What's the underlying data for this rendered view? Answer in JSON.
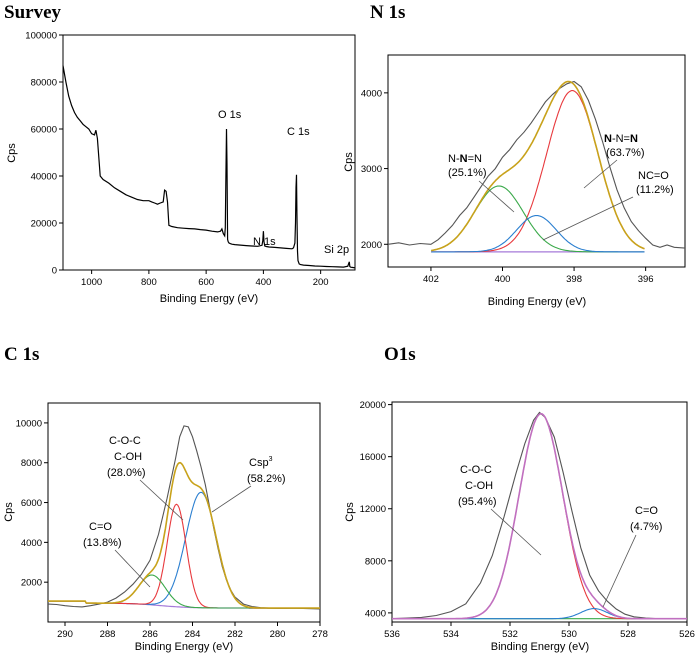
{
  "figure": {
    "description_label": "XPS spectra"
  },
  "chart_data": [
    {
      "id": "survey",
      "type": "line",
      "title": "Survey",
      "xlabel": "Binding Energy (eV)",
      "ylabel": "Cps",
      "xlim": [
        1100,
        80
      ],
      "ylim": [
        0,
        100000
      ],
      "xticks": [
        1000,
        800,
        600,
        400,
        200
      ],
      "xtick_labels": [
        "1000",
        "800",
        "600",
        "400",
        "200"
      ],
      "yticks": [
        0,
        20000,
        40000,
        60000,
        80000,
        100000
      ],
      "ytick_labels": [
        "0",
        "20000",
        "40000",
        "60000",
        "80000",
        "100000"
      ],
      "series": [
        {
          "name": "survey",
          "color": "#000000",
          "x": [
            1100,
            1090,
            1080,
            1070,
            1060,
            1050,
            1040,
            1030,
            1020,
            1010,
            1000,
            990,
            985,
            980,
            975,
            970,
            960,
            940,
            920,
            900,
            880,
            860,
            840,
            820,
            800,
            790,
            780,
            770,
            760,
            750,
            745,
            740,
            735,
            730,
            720,
            700,
            680,
            660,
            640,
            620,
            600,
            580,
            560,
            550,
            545,
            540,
            535,
            533,
            531,
            529,
            527,
            525,
            523,
            520,
            515,
            510,
            500,
            480,
            460,
            440,
            420,
            405,
            402,
            400,
            398,
            395,
            390,
            380,
            360,
            340,
            320,
            300,
            295,
            290,
            288,
            286,
            284.5,
            283,
            281,
            279,
            275,
            270,
            260,
            240,
            220,
            200,
            180,
            160,
            140,
            120,
            105,
            102,
            100,
            98,
            95,
            90,
            85,
            80
          ],
          "y": [
            87000,
            80000,
            74000,
            70000,
            67000,
            65000,
            63500,
            62000,
            61000,
            60000,
            58000,
            57500,
            59500,
            56000,
            48000,
            40000,
            38500,
            37000,
            35000,
            33500,
            32000,
            31000,
            30000,
            29500,
            29500,
            29000,
            28500,
            28000,
            28500,
            29000,
            34000,
            33500,
            29000,
            19000,
            18500,
            18000,
            17800,
            17600,
            17500,
            17200,
            17000,
            16500,
            16200,
            16500,
            17500,
            15500,
            14500,
            18000,
            40000,
            60000,
            45000,
            13000,
            12000,
            11500,
            11200,
            11000,
            10800,
            10600,
            10400,
            10200,
            10100,
            10500,
            12500,
            16500,
            12000,
            10200,
            10000,
            9800,
            9600,
            9400,
            9200,
            9000,
            9400,
            11500,
            20000,
            35000,
            40500,
            25000,
            8000,
            4000,
            2600,
            2300,
            2100,
            1900,
            1700,
            1600,
            1500,
            1400,
            1300,
            1250,
            1600,
            2800,
            3500,
            1500,
            1200,
            1100,
            1000,
            950
          ]
        }
      ],
      "annotations": [
        {
          "text": "O 1s",
          "x": 570,
          "y": 63000
        },
        {
          "text": "N 1s",
          "x": 448,
          "y": 32000
        },
        {
          "text": "C 1s",
          "x": 310,
          "y": 53000
        },
        {
          "text": "Si 2p",
          "x": 135,
          "y": 5500
        }
      ]
    },
    {
      "id": "n1s",
      "type": "line",
      "title": "N 1s",
      "xlabel": "Binding Energy (eV)",
      "ylabel": "Cps",
      "xlim": [
        403.2,
        394.9
      ],
      "ylim": [
        1700,
        4500
      ],
      "xticks": [
        402,
        400,
        398,
        396
      ],
      "xtick_labels": [
        "402",
        "400",
        "398",
        "396"
      ],
      "yticks": [
        2000,
        3000,
        4000
      ],
      "ytick_labels": [
        "2000",
        "3000",
        "4000"
      ],
      "background": 1900,
      "raw": {
        "name": "raw",
        "color": "#555555",
        "x": [
          403.2,
          402.9,
          402.6,
          402.3,
          402.0,
          401.8,
          401.6,
          401.4,
          401.2,
          401.0,
          400.8,
          400.6,
          400.4,
          400.2,
          400.0,
          399.8,
          399.6,
          399.4,
          399.2,
          399.0,
          398.8,
          398.6,
          398.4,
          398.2,
          398.0,
          397.8,
          397.6,
          397.4,
          397.2,
          397.0,
          396.8,
          396.6,
          396.4,
          396.2,
          396.0,
          395.8,
          395.6,
          395.4,
          395.2,
          394.9
        ],
        "y": [
          2000,
          2020,
          1990,
          2010,
          2000,
          2060,
          2150,
          2250,
          2380,
          2480,
          2620,
          2760,
          2900,
          3000,
          3150,
          3250,
          3380,
          3480,
          3600,
          3740,
          3880,
          3980,
          4060,
          4120,
          4150,
          4080,
          3900,
          3650,
          3350,
          3020,
          2720,
          2480,
          2300,
          2180,
          2080,
          1990,
          1960,
          1990,
          1960,
          1950
        ]
      },
      "peaks": [
        {
          "name": "N-N=N (63.7%)",
          "center": 398.05,
          "height": 2130,
          "sigma": 0.72,
          "color": "#e8393d"
        },
        {
          "name": "N-N=N (25.1%)",
          "center": 400.1,
          "height": 870,
          "sigma": 0.68,
          "color": "#3aa94a"
        },
        {
          "name": "NC=O (11.2%)",
          "center": 399.05,
          "height": 480,
          "sigma": 0.55,
          "color": "#2b7fd0"
        }
      ],
      "envelope_color": "#c8a21b",
      "envelope_range": [
        402,
        396
      ],
      "background_color": "#a57ad9",
      "annotations": [
        {
          "line1": "N-N=N",
          "line1_bold_parts": [
            "N",
            "",
            "N"
          ],
          "line2": "(63.7%)",
          "x": 397.4,
          "y": 3900,
          "arrow_to": [
            398.1,
            3180
          ]
        },
        {
          "line1": "N-N=N",
          "line1_bold_parts": [
            "",
            "N",
            ""
          ],
          "line2": "(25.1%)",
          "x": 400.8,
          "y": 3100,
          "arrow_to": [
            399.9,
            2480
          ]
        },
        {
          "line1": "NC=O",
          "line2": "(11.2%)",
          "x": 396.3,
          "y": 2920,
          "arrow_to": [
            399.1,
            2190
          ]
        }
      ],
      "annotation_text": {
        "a1_n1": "N",
        "a1_mid": "-N=",
        "a1_n2": "N",
        "a1_pct": "(63.7%)",
        "a2_pre": "N-",
        "a2_n": "N",
        "a2_post": "=N",
        "a2_pct": "(25.1%)",
        "a3_name": "NC=O",
        "a3_pct": "(11.2%)"
      }
    },
    {
      "id": "c1s",
      "type": "line",
      "title": "C 1s",
      "xlabel": "Binding Energy (eV)",
      "ylabel": "Cps",
      "xlim": [
        290.8,
        278
      ],
      "ylim": [
        0,
        11000
      ],
      "xticks": [
        290,
        288,
        286,
        284,
        282,
        280,
        278
      ],
      "xtick_labels": [
        "290",
        "288",
        "286",
        "284",
        "282",
        "280",
        "278"
      ],
      "yticks": [
        2000,
        4000,
        6000,
        8000,
        10000
      ],
      "ytick_labels": [
        "2000",
        "4000",
        "6000",
        "8000",
        "10000"
      ],
      "background_color": "#a57ad9",
      "raw": {
        "name": "raw",
        "color": "#555555",
        "x": [
          290.8,
          290.4,
          290.0,
          289.6,
          289.2,
          288.8,
          288.4,
          288.0,
          287.6,
          287.2,
          286.8,
          286.4,
          286.0,
          285.6,
          285.2,
          284.8,
          284.6,
          284.4,
          284.2,
          284.0,
          283.8,
          283.6,
          283.4,
          283.2,
          283.0,
          282.8,
          282.6,
          282.4,
          282.2,
          282.0,
          281.6,
          281.2,
          280.8,
          280.4,
          280.0,
          279.6,
          279.2,
          278.8,
          278.4,
          278.0
        ],
        "y": [
          900,
          880,
          820,
          780,
          760,
          820,
          900,
          1000,
          1200,
          1500,
          1900,
          2400,
          3100,
          4400,
          6200,
          8200,
          9300,
          9850,
          9800,
          9300,
          8600,
          7800,
          6900,
          5800,
          4700,
          3700,
          2800,
          2100,
          1600,
          1250,
          900,
          780,
          720,
          700,
          690,
          690,
          700,
          680,
          670,
          660
        ]
      },
      "peaks": [
        {
          "name": "Csp3 (58.2%)",
          "center": 283.6,
          "height": 5800,
          "sigma": 0.72,
          "color": "#2b7fd0"
        },
        {
          "name": "C-O-C C-OH (28.0%)",
          "center": 284.75,
          "height": 5150,
          "sigma": 0.45,
          "color": "#e8393d"
        },
        {
          "name": "C=O (13.8%)",
          "center": 285.9,
          "height": 1500,
          "sigma": 0.62,
          "color": "#3aa94a"
        }
      ],
      "envelope_color": "#c8a21b",
      "annotation_text": {
        "b1_l1": "C-O-C",
        "b1_l2": "C-OH",
        "b1_pct": "(28.0%)",
        "b2_name": "Csp",
        "b2_sup": "3",
        "b2_pct": "(58.2%)",
        "b3_name": "C=O",
        "b3_pct": "(13.8%)"
      }
    },
    {
      "id": "o1s",
      "type": "line",
      "title": "O1s",
      "xlabel": "Binding Energy (eV)",
      "ylabel": "Cps",
      "xlim": [
        536,
        526
      ],
      "ylim": [
        3300,
        20200
      ],
      "xticks": [
        536,
        534,
        532,
        530,
        528,
        526
      ],
      "xtick_labels": [
        "536",
        "534",
        "532",
        "530",
        "528",
        "526"
      ],
      "yticks": [
        4000,
        8000,
        12000,
        16000,
        20000
      ],
      "ytick_labels": [
        "4000",
        "8000",
        "12000",
        "16000",
        "20000"
      ],
      "background": 3550,
      "raw": {
        "name": "raw",
        "color": "#555555",
        "x": [
          536.0,
          535.5,
          535.0,
          534.5,
          534.0,
          533.5,
          533.0,
          532.6,
          532.2,
          531.8,
          531.5,
          531.2,
          531.0,
          530.8,
          530.5,
          530.2,
          529.9,
          529.6,
          529.3,
          529.0,
          528.7,
          528.4,
          528.1,
          527.8,
          527.4,
          527.0,
          526.5,
          526.0
        ],
        "y": [
          3550,
          3600,
          3650,
          3800,
          4100,
          4700,
          6300,
          8400,
          11400,
          14700,
          17000,
          18800,
          19400,
          19000,
          17500,
          14800,
          11800,
          9000,
          6900,
          5700,
          4900,
          4300,
          3900,
          3700,
          3600,
          3550,
          3550,
          3550
        ]
      },
      "peaks": [
        {
          "name": "C-O-C C-OH (95.4%)",
          "center": 530.95,
          "height": 15750,
          "sigma": 0.74,
          "color": "#e8393d"
        },
        {
          "name": "C=O (4.7%)",
          "center": 529.15,
          "height": 780,
          "sigma": 0.45,
          "color": "#2b7fd0"
        }
      ],
      "envelope_color": "#c070c0",
      "background_color": "#3aa94a",
      "annotation_text": {
        "c1_l1": "C-O-C",
        "c1_l2": "C-OH",
        "c1_pct": "(95.4%)",
        "c2_name": "C=O",
        "c2_pct": "(4.7%)"
      }
    }
  ]
}
